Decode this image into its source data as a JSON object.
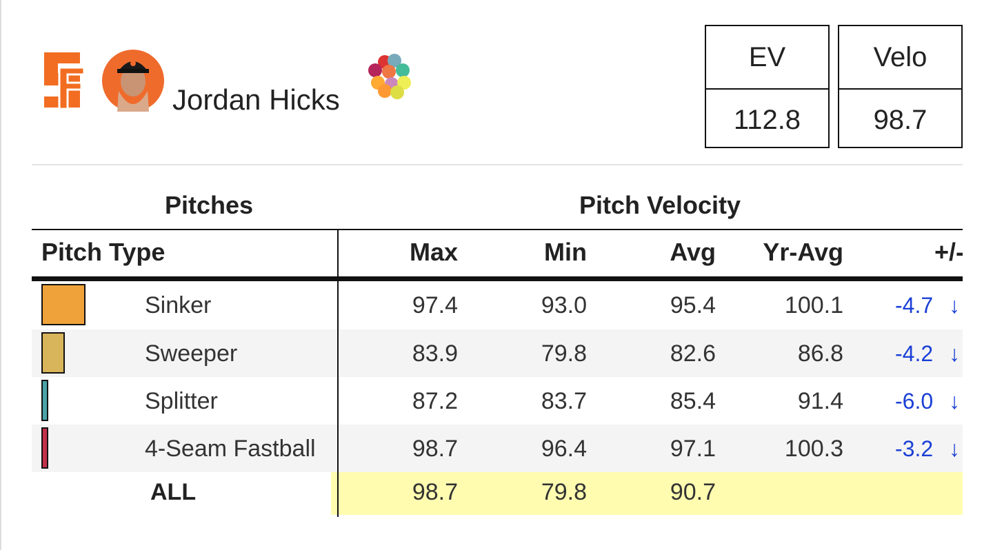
{
  "header": {
    "player_name": "Jordan Hicks"
  },
  "stats": [
    {
      "label": "EV",
      "value": "112.8"
    },
    {
      "label": "Velo",
      "value": "98.7"
    }
  ],
  "table": {
    "groups": [
      "Pitches",
      "Pitch Velocity"
    ],
    "columns": [
      "Pitch Type",
      "Max",
      "Min",
      "Avg",
      "Yr-Avg",
      "+/-"
    ],
    "rows": [
      {
        "color": "#f0a23a",
        "pitch": "Sinker",
        "max": "97.4",
        "min": "93.0",
        "avg": "95.4",
        "yr_avg": "100.1",
        "diff": "-4.7",
        "arrow": "↓"
      },
      {
        "color": "#d8b45a",
        "pitch": "Sweeper",
        "max": "83.9",
        "min": "79.8",
        "avg": "82.6",
        "yr_avg": "86.8",
        "diff": "-4.2",
        "arrow": "↓"
      },
      {
        "color": "#4aa3a8",
        "pitch": "Splitter",
        "max": "87.2",
        "min": "83.7",
        "avg": "85.4",
        "yr_avg": "91.4",
        "diff": "-6.0",
        "arrow": "↓"
      },
      {
        "color": "#c2304a",
        "pitch": "4-Seam Fastball",
        "max": "98.7",
        "min": "96.4",
        "avg": "97.1",
        "yr_avg": "100.3",
        "diff": "-3.2",
        "arrow": "↓"
      }
    ],
    "total": {
      "pitch": "ALL",
      "max": "98.7",
      "min": "79.8",
      "avg": "90.7"
    }
  }
}
